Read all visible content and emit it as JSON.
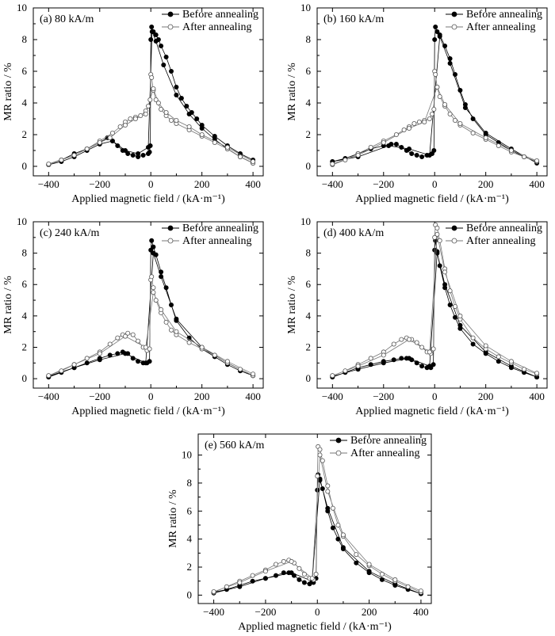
{
  "chart_data": [
    {
      "type": "scatter",
      "panel_label": "(a) 80 kA/m",
      "xlabel": "Applied magnetic field / (kA·m⁻¹)",
      "ylabel": "MR ratio / %",
      "xlim": [
        -460,
        440
      ],
      "ylim": [
        -0.6,
        10
      ],
      "xticks": [
        -400,
        -200,
        0,
        200,
        400
      ],
      "yticks": [
        0,
        2,
        4,
        6,
        8,
        10
      ],
      "legend_position": "top-right",
      "series": [
        {
          "name": "Before annealing",
          "marker": "filled-circle",
          "x": [
            -400,
            -350,
            -300,
            -250,
            -200,
            -170,
            -150,
            -130,
            -110,
            -90,
            -70,
            -50,
            -30,
            -10,
            -5,
            -2,
            0,
            3,
            10,
            20,
            30,
            40,
            60,
            80,
            100,
            120,
            140,
            160,
            180,
            200,
            250,
            300,
            350,
            400,
            400,
            350,
            300,
            250,
            200,
            150,
            100,
            50,
            20,
            5,
            -10,
            -50,
            -100,
            -150,
            -200,
            -250,
            -300,
            -350,
            -400
          ],
          "y": [
            0.1,
            0.4,
            0.8,
            1.1,
            1.5,
            1.8,
            1.6,
            1.3,
            1.0,
            0.8,
            0.7,
            0.6,
            0.7,
            0.8,
            0.9,
            1.3,
            8.0,
            8.8,
            8.5,
            8.3,
            8.0,
            7.6,
            6.9,
            6.0,
            5.0,
            4.3,
            3.8,
            3.4,
            3.0,
            2.6,
            1.9,
            1.3,
            0.8,
            0.4,
            0.2,
            0.6,
            1.1,
            1.7,
            2.4,
            3.3,
            4.5,
            6.4,
            7.9,
            8.5,
            1.2,
            0.8,
            1.0,
            1.6,
            1.4,
            1.0,
            0.6,
            0.3,
            0.1
          ]
        },
        {
          "name": "After annealing",
          "marker": "open-circle",
          "x": [
            -400,
            -350,
            -300,
            -250,
            -200,
            -150,
            -120,
            -100,
            -80,
            -60,
            -40,
            -20,
            -10,
            -3,
            0,
            3,
            10,
            20,
            40,
            60,
            80,
            100,
            150,
            200,
            250,
            300,
            350,
            400,
            400,
            300,
            200,
            150,
            100,
            60,
            30,
            10,
            -20,
            -60,
            -100,
            -160,
            -200,
            -300,
            -400
          ],
          "y": [
            0.1,
            0.4,
            0.7,
            1.1,
            1.6,
            2.1,
            2.5,
            2.8,
            3.0,
            3.1,
            3.2,
            3.5,
            3.8,
            4.2,
            5.8,
            5.6,
            4.8,
            4.2,
            3.6,
            3.2,
            2.9,
            2.7,
            2.3,
            1.9,
            1.5,
            1.1,
            0.6,
            0.2,
            0.3,
            1.2,
            2.0,
            2.5,
            2.9,
            3.4,
            4.0,
            4.9,
            3.3,
            3.0,
            2.6,
            1.8,
            1.5,
            0.7,
            0.15
          ]
        }
      ]
    },
    {
      "type": "scatter",
      "panel_label": "(b) 160 kA/m",
      "xlabel": "Applied magnetic field / (kA·m⁻¹)",
      "ylabel": "MR ratio / %",
      "xlim": [
        -460,
        440
      ],
      "ylim": [
        -0.6,
        10
      ],
      "xticks": [
        -400,
        -200,
        0,
        200,
        400
      ],
      "yticks": [
        0,
        2,
        4,
        6,
        8,
        10
      ],
      "legend_position": "top-right",
      "series": [
        {
          "name": "Before annealing",
          "marker": "filled-circle",
          "x": [
            -400,
            -350,
            -300,
            -250,
            -200,
            -170,
            -150,
            -130,
            -110,
            -90,
            -70,
            -50,
            -30,
            -10,
            -3,
            0,
            3,
            10,
            20,
            40,
            60,
            80,
            100,
            120,
            150,
            200,
            250,
            300,
            350,
            400,
            400,
            300,
            200,
            120,
            60,
            20,
            -20,
            -100,
            -180,
            -300,
            -400
          ],
          "y": [
            0.3,
            0.5,
            0.8,
            1.1,
            1.3,
            1.4,
            1.4,
            1.2,
            1.0,
            0.8,
            0.7,
            0.6,
            0.7,
            0.8,
            1.0,
            8.0,
            8.8,
            8.5,
            8.3,
            7.6,
            6.8,
            5.8,
            4.8,
            3.9,
            3.0,
            2.0,
            1.5,
            1.0,
            0.6,
            0.3,
            0.2,
            1.1,
            2.1,
            3.7,
            6.5,
            8.2,
            0.7,
            1.1,
            1.3,
            0.6,
            0.3
          ]
        },
        {
          "name": "After annealing",
          "marker": "open-circle",
          "x": [
            -400,
            -350,
            -300,
            -250,
            -200,
            -150,
            -120,
            -100,
            -80,
            -60,
            -40,
            -20,
            -10,
            -3,
            0,
            3,
            10,
            20,
            40,
            60,
            80,
            100,
            150,
            200,
            250,
            300,
            350,
            400,
            400,
            300,
            200,
            100,
            40,
            10,
            -40,
            -100,
            -200,
            -300,
            -400
          ],
          "y": [
            0.1,
            0.4,
            0.8,
            1.2,
            1.6,
            2.0,
            2.3,
            2.5,
            2.7,
            2.8,
            2.9,
            3.0,
            3.3,
            3.6,
            6.0,
            5.8,
            5.0,
            4.4,
            3.8,
            3.3,
            2.9,
            2.6,
            2.1,
            1.7,
            1.3,
            0.9,
            0.6,
            0.3,
            0.35,
            1.0,
            1.8,
            2.7,
            3.9,
            5.0,
            2.8,
            2.4,
            1.5,
            0.7,
            0.15
          ]
        }
      ]
    },
    {
      "type": "scatter",
      "panel_label": "(c) 240 kA/m",
      "xlabel": "Applied magnetic field / (kA·m⁻¹)",
      "ylabel": "MR ratio / %",
      "xlim": [
        -460,
        440
      ],
      "ylim": [
        -0.6,
        10
      ],
      "xticks": [
        -400,
        -200,
        0,
        200,
        400
      ],
      "yticks": [
        0,
        2,
        4,
        6,
        8,
        10
      ],
      "legend_position": "top-right",
      "series": [
        {
          "name": "Before annealing",
          "marker": "filled-circle",
          "x": [
            -400,
            -350,
            -300,
            -250,
            -200,
            -160,
            -130,
            -110,
            -90,
            -70,
            -50,
            -30,
            -15,
            -5,
            0,
            3,
            10,
            20,
            40,
            60,
            80,
            100,
            150,
            200,
            250,
            300,
            350,
            400,
            400,
            300,
            200,
            100,
            40,
            10,
            -20,
            -100,
            -200,
            -300,
            -400
          ],
          "y": [
            0.1,
            0.4,
            0.7,
            1.0,
            1.3,
            1.5,
            1.6,
            1.7,
            1.6,
            1.3,
            1.1,
            1.0,
            1.0,
            1.1,
            8.2,
            8.8,
            8.4,
            7.9,
            6.8,
            5.8,
            4.7,
            3.7,
            2.6,
            1.9,
            1.4,
            0.9,
            0.5,
            0.2,
            0.2,
            1.0,
            2.0,
            3.8,
            6.5,
            8.0,
            1.0,
            1.6,
            1.2,
            0.7,
            0.15
          ]
        },
        {
          "name": "After annealing",
          "marker": "open-circle",
          "x": [
            -400,
            -350,
            -300,
            -250,
            -200,
            -160,
            -130,
            -110,
            -90,
            -70,
            -50,
            -30,
            -15,
            -5,
            0,
            3,
            10,
            20,
            40,
            60,
            80,
            100,
            150,
            200,
            250,
            300,
            350,
            400,
            400,
            300,
            200,
            100,
            40,
            10,
            -20,
            -100,
            -200,
            -300,
            -400
          ],
          "y": [
            0.2,
            0.5,
            0.9,
            1.3,
            1.7,
            2.2,
            2.6,
            2.8,
            2.9,
            2.8,
            2.4,
            2.0,
            1.8,
            1.9,
            6.3,
            6.5,
            5.8,
            5.0,
            4.2,
            3.6,
            3.1,
            2.8,
            2.3,
            1.9,
            1.5,
            1.0,
            0.6,
            0.2,
            0.3,
            1.1,
            2.0,
            3.0,
            4.4,
            5.5,
            2.0,
            2.7,
            1.6,
            0.9,
            0.2
          ]
        }
      ]
    },
    {
      "type": "scatter",
      "panel_label": "(d) 400 kA/m",
      "xlabel": "Applied magnetic field / (kA·m⁻¹)",
      "ylabel": "MR ratio / %",
      "xlim": [
        -460,
        440
      ],
      "ylim": [
        -0.6,
        10
      ],
      "xticks": [
        -400,
        -200,
        0,
        200,
        400
      ],
      "yticks": [
        0,
        2,
        4,
        6,
        8,
        10
      ],
      "legend_position": "top-right",
      "series": [
        {
          "name": "Before annealing",
          "marker": "filled-circle",
          "x": [
            -400,
            -350,
            -300,
            -250,
            -200,
            -160,
            -130,
            -110,
            -90,
            -70,
            -50,
            -30,
            -15,
            -5,
            0,
            3,
            10,
            20,
            40,
            60,
            80,
            100,
            150,
            200,
            250,
            300,
            350,
            400,
            400,
            300,
            200,
            100,
            40,
            10,
            -20,
            -100,
            -200,
            -300,
            -400
          ],
          "y": [
            0.1,
            0.4,
            0.7,
            0.9,
            1.1,
            1.2,
            1.3,
            1.3,
            1.2,
            1.0,
            0.8,
            0.7,
            0.7,
            0.9,
            8.2,
            8.8,
            8.1,
            7.2,
            5.8,
            4.7,
            3.9,
            3.2,
            2.2,
            1.6,
            1.1,
            0.7,
            0.4,
            0.1,
            0.1,
            0.8,
            1.7,
            3.4,
            6.0,
            8.0,
            0.8,
            1.3,
            1.0,
            0.6,
            0.15
          ]
        },
        {
          "name": "After annealing",
          "marker": "open-circle",
          "x": [
            -400,
            -350,
            -300,
            -250,
            -200,
            -160,
            -130,
            -110,
            -90,
            -70,
            -50,
            -30,
            -15,
            -5,
            0,
            3,
            10,
            20,
            40,
            60,
            80,
            100,
            150,
            200,
            250,
            300,
            350,
            400,
            400,
            300,
            200,
            100,
            40,
            10,
            -20,
            -100,
            -200,
            -300,
            -400
          ],
          "y": [
            0.2,
            0.5,
            0.9,
            1.3,
            1.7,
            2.2,
            2.5,
            2.6,
            2.5,
            2.3,
            2.0,
            1.7,
            1.6,
            1.9,
            9.0,
            9.8,
            9.6,
            8.8,
            7.0,
            5.6,
            4.6,
            3.8,
            2.6,
            1.9,
            1.4,
            1.0,
            0.6,
            0.3,
            0.35,
            1.1,
            2.1,
            4.0,
            6.8,
            9.2,
            1.7,
            2.5,
            1.5,
            0.8,
            0.2
          ]
        }
      ]
    },
    {
      "type": "scatter",
      "panel_label": "(e) 560 kA/m",
      "xlabel": "Applied magnetic field / (kA·m⁻¹)",
      "ylabel": "MR ratio / %",
      "xlim": [
        -460,
        440
      ],
      "ylim": [
        -0.6,
        11.5
      ],
      "xticks": [
        -400,
        -200,
        0,
        200,
        400
      ],
      "yticks": [
        0,
        2,
        4,
        6,
        8,
        10
      ],
      "legend_position": "top-right",
      "series": [
        {
          "name": "Before annealing",
          "marker": "filled-circle",
          "x": [
            -400,
            -350,
            -300,
            -250,
            -200,
            -160,
            -130,
            -110,
            -90,
            -70,
            -50,
            -30,
            -15,
            -5,
            0,
            3,
            10,
            20,
            40,
            60,
            80,
            100,
            150,
            200,
            250,
            300,
            350,
            400,
            400,
            300,
            200,
            100,
            40,
            10,
            -20,
            -100,
            -200,
            -300,
            -400
          ],
          "y": [
            0.2,
            0.4,
            0.7,
            1.0,
            1.2,
            1.4,
            1.6,
            1.6,
            1.4,
            1.1,
            0.9,
            0.8,
            0.9,
            1.2,
            7.5,
            8.6,
            8.2,
            7.6,
            6.0,
            4.8,
            4.0,
            3.3,
            2.3,
            1.6,
            1.1,
            0.7,
            0.4,
            0.1,
            0.1,
            0.8,
            1.7,
            3.4,
            6.2,
            8.3,
            1.0,
            1.6,
            1.2,
            0.6,
            0.15
          ]
        },
        {
          "name": "After annealing",
          "marker": "open-circle",
          "x": [
            -400,
            -350,
            -300,
            -250,
            -200,
            -160,
            -130,
            -110,
            -90,
            -70,
            -50,
            -30,
            -15,
            -5,
            0,
            3,
            10,
            20,
            40,
            60,
            80,
            100,
            150,
            200,
            250,
            300,
            350,
            400,
            400,
            300,
            200,
            100,
            40,
            10,
            -20,
            -100,
            -200,
            -300,
            -400
          ],
          "y": [
            0.2,
            0.6,
            1.0,
            1.4,
            1.8,
            2.2,
            2.4,
            2.5,
            2.3,
            1.9,
            1.5,
            1.2,
            1.1,
            1.5,
            8.5,
            10.6,
            10.4,
            9.6,
            7.8,
            6.2,
            5.0,
            4.2,
            2.9,
            2.1,
            1.5,
            1.0,
            0.6,
            0.2,
            0.3,
            1.1,
            2.2,
            4.3,
            7.4,
            10.0,
            1.2,
            2.4,
            1.7,
            0.9,
            0.25
          ]
        }
      ]
    }
  ]
}
